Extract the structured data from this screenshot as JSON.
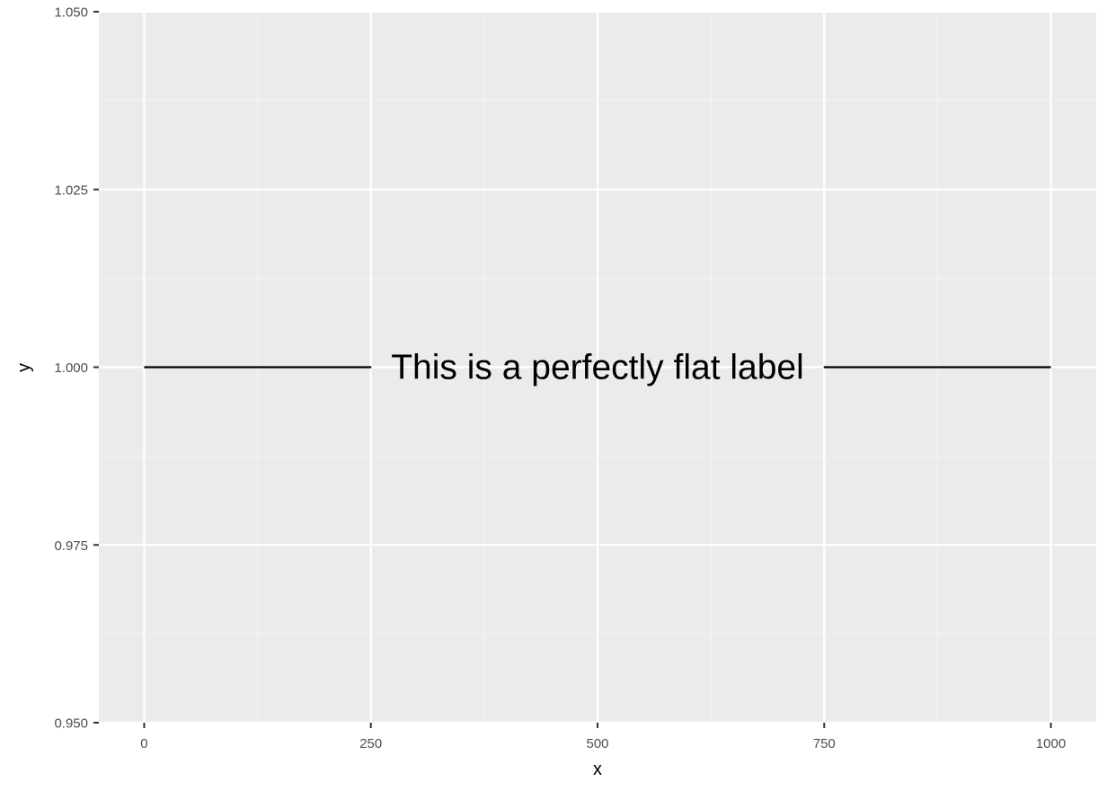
{
  "chart_data": {
    "type": "line",
    "title": "",
    "xlabel": "x",
    "ylabel": "y",
    "xlim": [
      -50,
      1050
    ],
    "ylim": [
      0.95,
      1.05
    ],
    "x_ticks": [
      0,
      250,
      500,
      750,
      1000
    ],
    "x_tick_labels": [
      "0",
      "250",
      "500",
      "750",
      "1000"
    ],
    "x_minor_ticks": [
      125,
      375,
      625,
      875
    ],
    "y_ticks": [
      0.95,
      0.975,
      1.0,
      1.025,
      1.05
    ],
    "y_tick_labels": [
      "0.950",
      "0.975",
      "1.000",
      "1.025",
      "1.050"
    ],
    "y_minor_ticks": [
      0.9625,
      0.9875,
      1.0125,
      1.0375
    ],
    "grid": true,
    "legend": "none",
    "series": [
      {
        "x": [
          0,
          1000
        ],
        "y": [
          1.0,
          1.0
        ],
        "label": "This is a perfectly flat label",
        "color": "#000000"
      }
    ],
    "colors": {
      "panel_background": "#ebebeb",
      "grid_major": "#ffffff",
      "grid_minor": "#f5f5f5",
      "tick_text": "#4d4d4d",
      "tick_mark": "#333333"
    }
  }
}
